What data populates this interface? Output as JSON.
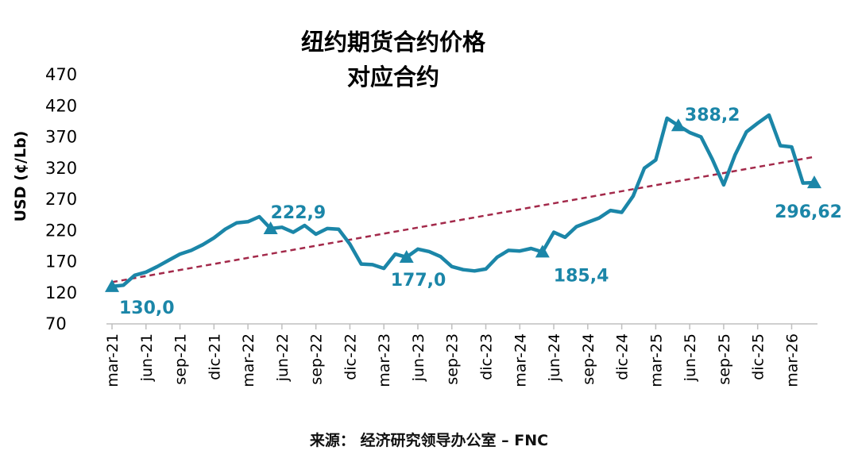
{
  "chart_data": {
    "type": "line",
    "title": [
      "纽约期货合约价格",
      "对应合约"
    ],
    "ylabel": "USD (¢/Lb)",
    "ylim": [
      70,
      470
    ],
    "yticks": [
      70,
      120,
      170,
      220,
      270,
      320,
      370,
      420,
      470
    ],
    "xticks": [
      "mar-21",
      "jun-21",
      "sep-21",
      "dic-21",
      "mar-22",
      "jun-22",
      "sep-22",
      "dic-22",
      "mar-23",
      "jun-23",
      "sep-23",
      "dic-23",
      "mar-24",
      "jun-24",
      "sep-24",
      "dic-24",
      "mar-25",
      "jun-25",
      "sep-25",
      "dic-25",
      "mar-26"
    ],
    "series": [
      {
        "values": [
          [
            0,
            130
          ],
          [
            1,
            132
          ],
          [
            2,
            148
          ],
          [
            3,
            153
          ],
          [
            4,
            162
          ],
          [
            5,
            172
          ],
          [
            6,
            182
          ],
          [
            7,
            188
          ],
          [
            8,
            197
          ],
          [
            9,
            208
          ],
          [
            10,
            222
          ],
          [
            11,
            232
          ],
          [
            12,
            234
          ],
          [
            13,
            242
          ],
          [
            14,
            223
          ],
          [
            15,
            225
          ],
          [
            16,
            217
          ],
          [
            17,
            228
          ],
          [
            18,
            214
          ],
          [
            19,
            223
          ],
          [
            20,
            222
          ],
          [
            21,
            198
          ],
          [
            22,
            166
          ],
          [
            23,
            165
          ],
          [
            24,
            159
          ],
          [
            25,
            182
          ],
          [
            26,
            177
          ],
          [
            27,
            190
          ],
          [
            28,
            186
          ],
          [
            29,
            178
          ],
          [
            30,
            162
          ],
          [
            31,
            157
          ],
          [
            32,
            155
          ],
          [
            33,
            158
          ],
          [
            34,
            177
          ],
          [
            35,
            188
          ],
          [
            36,
            187
          ],
          [
            37,
            191
          ],
          [
            38,
            185.4
          ],
          [
            39,
            217
          ],
          [
            40,
            209
          ],
          [
            41,
            226
          ],
          [
            42,
            233
          ],
          [
            43,
            240
          ],
          [
            44,
            252
          ],
          [
            45,
            249
          ],
          [
            46,
            275
          ],
          [
            47,
            320
          ],
          [
            48,
            333
          ],
          [
            49,
            400
          ],
          [
            50,
            388.2
          ],
          [
            51,
            377
          ],
          [
            52,
            370
          ],
          [
            53,
            334
          ],
          [
            54,
            293
          ],
          [
            55,
            341
          ],
          [
            56,
            378
          ],
          [
            57,
            392
          ],
          [
            58,
            405
          ],
          [
            59,
            356
          ],
          [
            60,
            354
          ],
          [
            61,
            296
          ],
          [
            62,
            296.62
          ]
        ],
        "color": "#1b86a8"
      }
    ],
    "trendline": {
      "from": [
        0,
        137
      ],
      "to": [
        62,
        338
      ],
      "color": "#a3294a",
      "style": "dashed"
    },
    "annotations": [
      {
        "x": 0,
        "y": 130,
        "label": "130,0"
      },
      {
        "x": 14,
        "y": 222.9,
        "label": "222,9"
      },
      {
        "x": 26,
        "y": 177,
        "label": "177,0"
      },
      {
        "x": 38,
        "y": 185.4,
        "label": "185,4"
      },
      {
        "x": 50,
        "y": 388.2,
        "label": "388,2"
      },
      {
        "x": 62,
        "y": 296.62,
        "label": "296,62"
      }
    ],
    "grid": false,
    "legend": "none"
  },
  "source": "来源： 经济研究领导办公室 – FNC"
}
